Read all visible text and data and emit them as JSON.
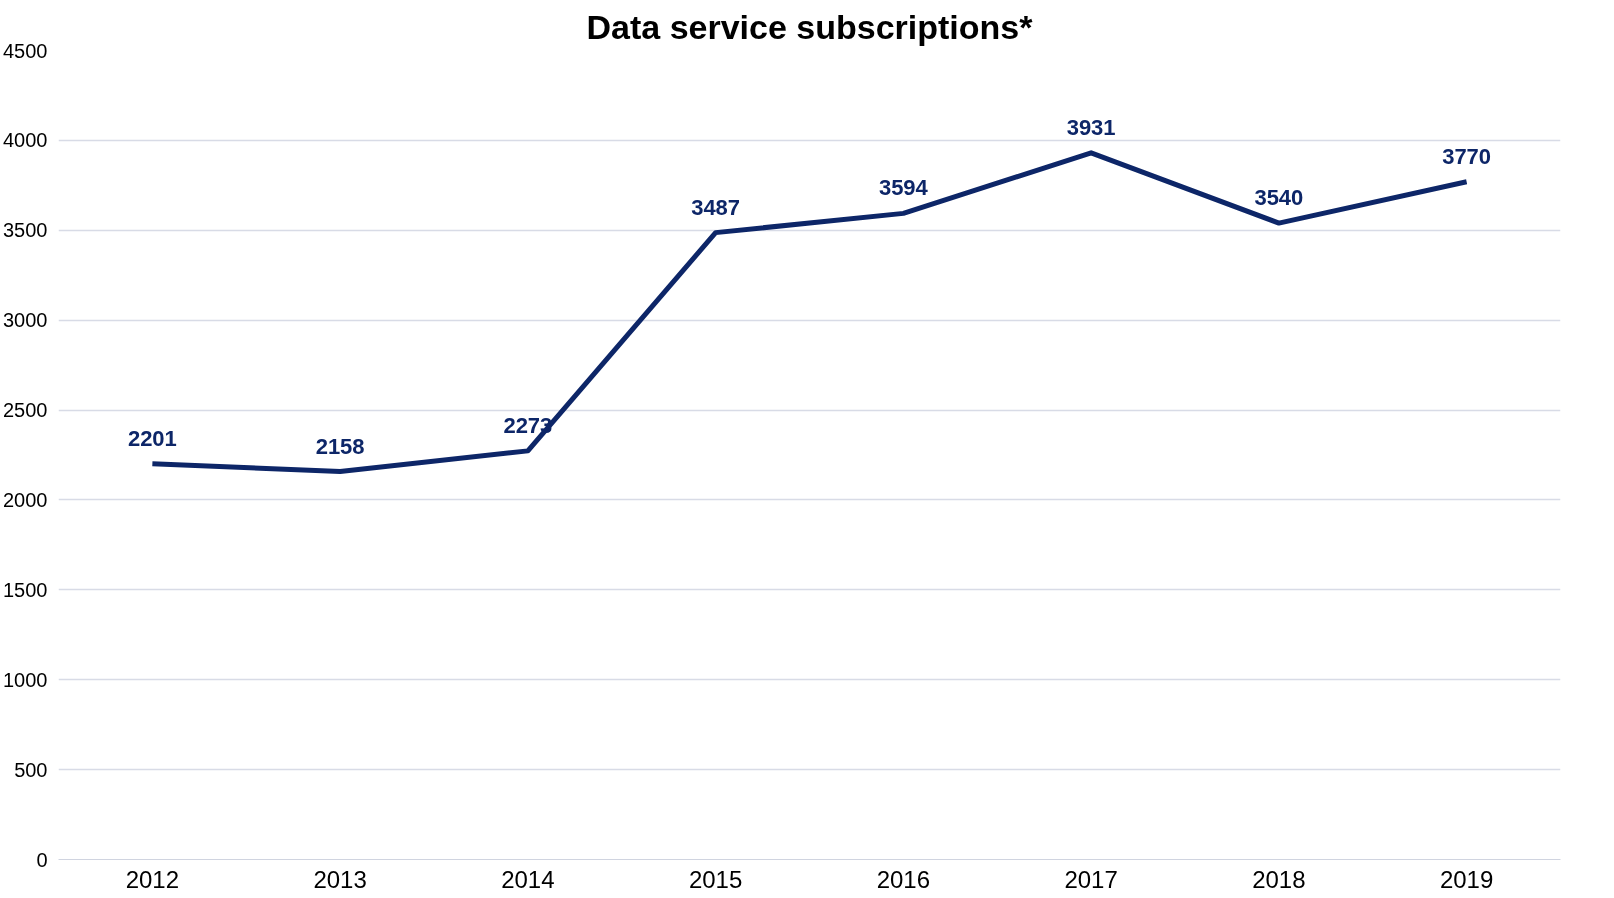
{
  "chart_data": {
    "type": "line",
    "title": "Data service subscriptions*",
    "categories": [
      "2012",
      "2013",
      "2014",
      "2015",
      "2016",
      "2017",
      "2018",
      "2019"
    ],
    "series": [
      {
        "color": "#0d2668",
        "values": [
          2201,
          2158,
          2273,
          3487,
          3594,
          3931,
          3540,
          3770
        ]
      }
    ],
    "ylim": [
      0,
      4500
    ],
    "yticks": [
      0,
      500,
      1000,
      1500,
      2000,
      2500,
      3000,
      3500,
      4000,
      4500
    ],
    "grid": "y",
    "data_labels": true,
    "marker": "none",
    "line_style": "solid"
  }
}
